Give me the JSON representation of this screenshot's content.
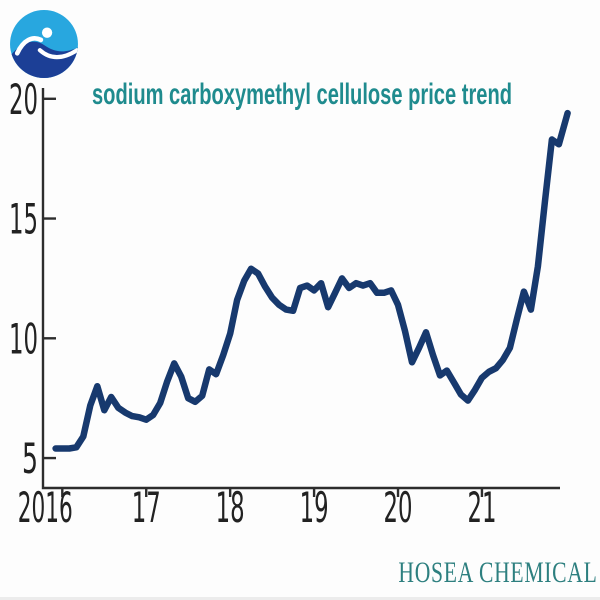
{
  "header": {
    "title": "sodium carboxymethyl cellulose price trend"
  },
  "branding": {
    "watermark": "HOSEA CHEMICAL",
    "logo_name": "hosea-chemical-logo"
  },
  "colors": {
    "line": "#17396e",
    "title": "#1f8b8e",
    "watermark": "#2d7f7f",
    "axis": "#2d2d2d",
    "tick_text": "#222222",
    "logo_light": "#28a7df",
    "logo_dark": "#1c3f96"
  },
  "chart_data": {
    "type": "line",
    "title": "sodium carboxymethyl cellulose price trend",
    "xlabel": "",
    "ylabel": "",
    "x_unit": "year (monthly data points)",
    "y_unit": "price",
    "grid": false,
    "legend": "none",
    "xlim": [
      2015.77,
      2021.93
    ],
    "ylim": [
      3.75,
      20.45
    ],
    "x_ticks": [
      {
        "value": 2016,
        "label": "2016"
      },
      {
        "value": 2017,
        "label": "17"
      },
      {
        "value": 2018,
        "label": "18"
      },
      {
        "value": 2019,
        "label": "19"
      },
      {
        "value": 2020,
        "label": "20"
      },
      {
        "value": 2021,
        "label": "21"
      }
    ],
    "y_ticks": [
      {
        "value": 5,
        "label": "5"
      },
      {
        "value": 10,
        "label": "10"
      },
      {
        "value": 15,
        "label": "15"
      },
      {
        "value": 20,
        "label": "20"
      }
    ],
    "series": [
      {
        "name": "sodium carboxymethyl cellulose price",
        "color": "#17396e",
        "points": [
          [
            2015.92,
            5.4
          ],
          [
            2016.0,
            5.4
          ],
          [
            2016.083,
            5.4
          ],
          [
            2016.167,
            5.45
          ],
          [
            2016.25,
            5.9
          ],
          [
            2016.333,
            7.2
          ],
          [
            2016.417,
            8.0
          ],
          [
            2016.5,
            7.0
          ],
          [
            2016.583,
            7.55
          ],
          [
            2016.667,
            7.1
          ],
          [
            2016.75,
            6.9
          ],
          [
            2016.833,
            6.75
          ],
          [
            2016.917,
            6.7
          ],
          [
            2017.0,
            6.6
          ],
          [
            2017.083,
            6.8
          ],
          [
            2017.167,
            7.3
          ],
          [
            2017.25,
            8.2
          ],
          [
            2017.333,
            8.95
          ],
          [
            2017.417,
            8.4
          ],
          [
            2017.5,
            7.5
          ],
          [
            2017.583,
            7.35
          ],
          [
            2017.667,
            7.6
          ],
          [
            2017.75,
            8.7
          ],
          [
            2017.833,
            8.5
          ],
          [
            2017.917,
            9.3
          ],
          [
            2018.0,
            10.2
          ],
          [
            2018.083,
            11.6
          ],
          [
            2018.167,
            12.4
          ],
          [
            2018.25,
            12.9
          ],
          [
            2018.333,
            12.7
          ],
          [
            2018.417,
            12.15
          ],
          [
            2018.5,
            11.7
          ],
          [
            2018.583,
            11.4
          ],
          [
            2018.667,
            11.2
          ],
          [
            2018.75,
            11.15
          ],
          [
            2018.833,
            12.1
          ],
          [
            2018.917,
            12.2
          ],
          [
            2019.0,
            12.0
          ],
          [
            2019.083,
            12.3
          ],
          [
            2019.167,
            11.3
          ],
          [
            2019.25,
            11.9
          ],
          [
            2019.333,
            12.5
          ],
          [
            2019.417,
            12.1
          ],
          [
            2019.5,
            12.3
          ],
          [
            2019.583,
            12.2
          ],
          [
            2019.667,
            12.3
          ],
          [
            2019.75,
            11.9
          ],
          [
            2019.833,
            11.9
          ],
          [
            2019.917,
            12.0
          ],
          [
            2020.0,
            11.4
          ],
          [
            2020.083,
            10.3
          ],
          [
            2020.167,
            9.0
          ],
          [
            2020.25,
            9.6
          ],
          [
            2020.333,
            10.25
          ],
          [
            2020.417,
            9.3
          ],
          [
            2020.5,
            8.45
          ],
          [
            2020.583,
            8.65
          ],
          [
            2020.667,
            8.15
          ],
          [
            2020.75,
            7.65
          ],
          [
            2020.833,
            7.4
          ],
          [
            2020.917,
            7.85
          ],
          [
            2021.0,
            8.35
          ],
          [
            2021.083,
            8.6
          ],
          [
            2021.167,
            8.75
          ],
          [
            2021.25,
            9.1
          ],
          [
            2021.333,
            9.6
          ],
          [
            2021.417,
            10.8
          ],
          [
            2021.5,
            11.95
          ],
          [
            2021.583,
            11.2
          ],
          [
            2021.667,
            13.0
          ],
          [
            2021.75,
            15.7
          ],
          [
            2021.833,
            18.3
          ],
          [
            2021.917,
            18.1
          ],
          [
            2022.02,
            19.4
          ]
        ]
      }
    ]
  }
}
